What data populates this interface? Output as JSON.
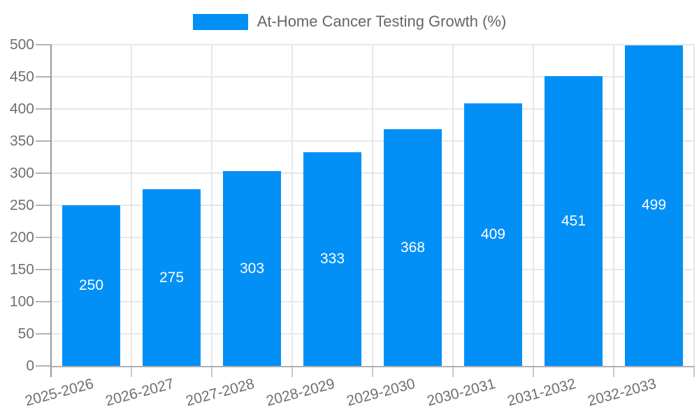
{
  "legend": {
    "label": "At-Home Cancer Testing Growth (%)",
    "swatch_color": "#0290f7"
  },
  "chart_data": {
    "type": "bar",
    "title": "",
    "xlabel": "",
    "ylabel": "",
    "categories": [
      "2025-2026",
      "2026-2027",
      "2027-2028",
      "2028-2029",
      "2029-2030",
      "2030-2031",
      "2031-2032",
      "2032-2033"
    ],
    "series": [
      {
        "name": "At-Home Cancer Testing Growth (%)",
        "values": [
          250,
          275,
          303,
          333,
          368,
          409,
          451,
          499
        ]
      }
    ],
    "values": [
      250,
      275,
      303,
      333,
      368,
      409,
      451,
      499
    ],
    "bar_labels": [
      "250",
      "275",
      "303",
      "333",
      "368",
      "409",
      "451",
      "499"
    ],
    "bar_labels_position": "inside-center",
    "ylim": [
      0,
      500
    ],
    "yticks": [
      0,
      50,
      100,
      150,
      200,
      250,
      300,
      350,
      400,
      450,
      500
    ],
    "grid": true,
    "legend_position": "top-center",
    "x_label_rotation_deg": -15,
    "colors": {
      "bar": "#0290f7",
      "bar_label_text": "#ffffff",
      "axis_text": "#6f6f6f",
      "legend_text": "#666666",
      "gridline": "#e7e7e7",
      "y_axis_line": "#989898",
      "x_baseline": "#b0b0b0"
    }
  }
}
